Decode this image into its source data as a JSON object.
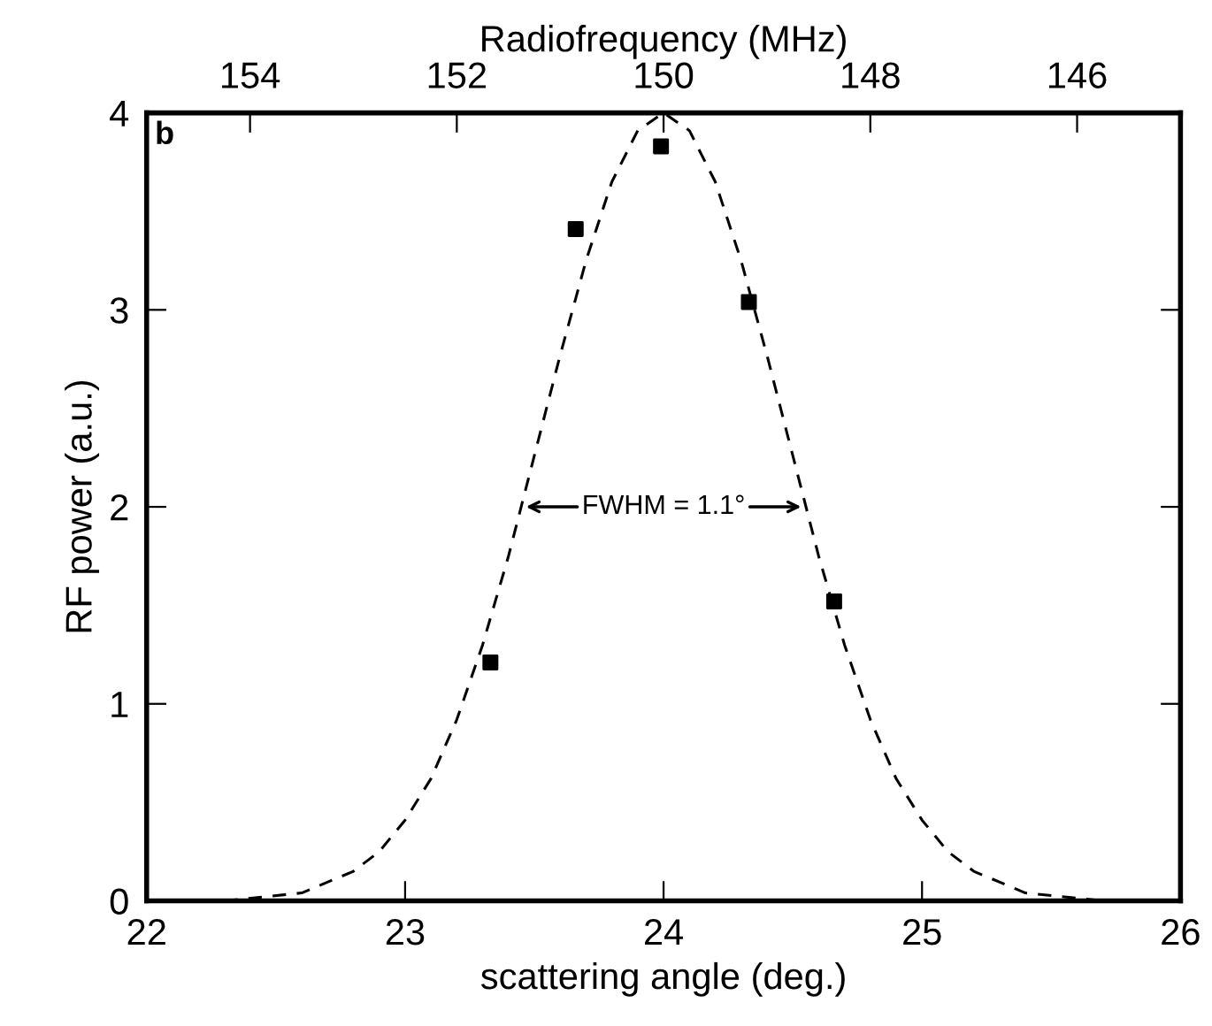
{
  "chart_data": {
    "type": "scatter",
    "xlabel": "scattering angle (deg.)",
    "ylabel": "RF power (a.u.)",
    "x2label": "Radiofrequency (MHz)",
    "xlim": [
      22,
      26
    ],
    "xticks": [
      22,
      23,
      24,
      25,
      26
    ],
    "ylim": [
      0,
      4
    ],
    "yticks": [
      0,
      1,
      2,
      3,
      4
    ],
    "x2lim": [
      155,
      145
    ],
    "x2ticks": [
      154,
      152,
      150,
      148,
      146
    ],
    "grid": false,
    "legend": false,
    "annotations": [
      "b",
      "FWHM = 1.1°"
    ],
    "series": [
      {
        "type": "line",
        "color": "#000000",
        "line_style": "dashed",
        "marker": "none",
        "x": [
          22.3,
          22.6,
          22.8,
          22.9,
          23.0,
          23.1,
          23.2,
          23.3,
          23.4,
          23.5,
          23.6,
          23.7,
          23.8,
          23.9,
          24.0,
          24.1,
          24.2,
          24.3,
          24.4,
          24.5,
          24.6,
          24.7,
          24.8,
          24.9,
          25.0,
          25.1,
          25.2,
          25.4,
          25.7
        ],
        "values": [
          0.0,
          0.04,
          0.15,
          0.25,
          0.41,
          0.62,
          0.92,
          1.3,
          1.75,
          2.26,
          2.77,
          3.25,
          3.65,
          3.91,
          4.0,
          3.91,
          3.65,
          3.25,
          2.77,
          2.26,
          1.75,
          1.3,
          0.92,
          0.62,
          0.41,
          0.25,
          0.15,
          0.04,
          0.0
        ]
      },
      {
        "color": "#000000",
        "marker": "square",
        "x": [
          23.33,
          23.66,
          23.99,
          24.33,
          24.66
        ],
        "values": [
          1.21,
          3.41,
          3.83,
          3.04,
          1.52
        ]
      }
    ]
  }
}
